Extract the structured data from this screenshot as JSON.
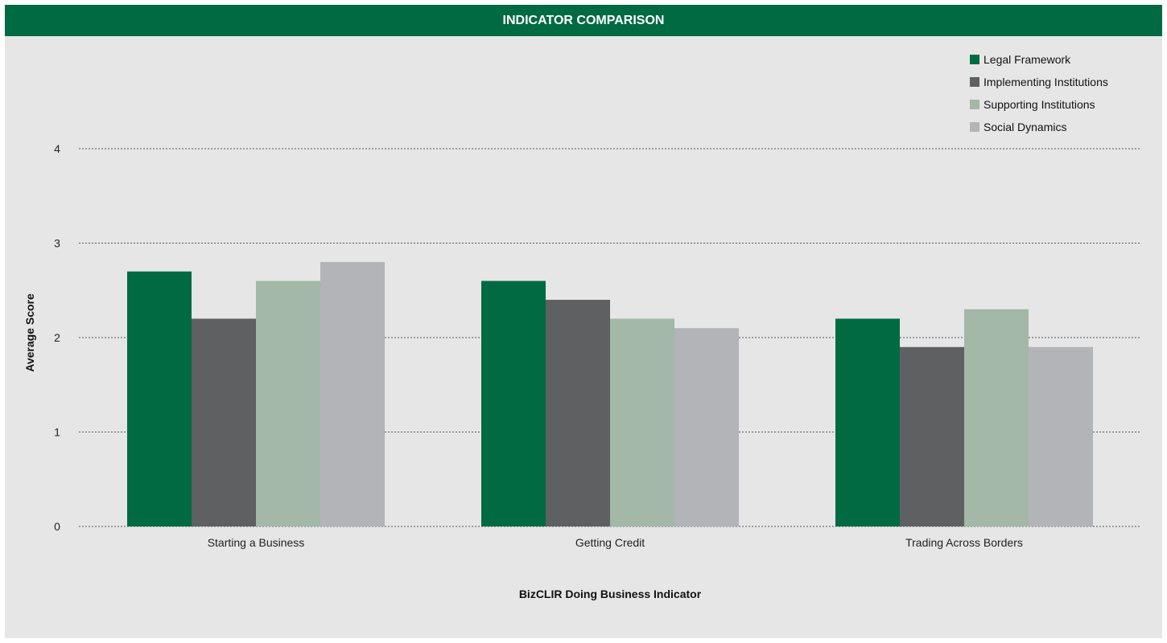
{
  "header": {
    "title": "INDICATOR COMPARISON"
  },
  "chart_data": {
    "type": "bar",
    "title": "INDICATOR COMPARISON",
    "xlabel": "BizCLIR Doing Business Indicator",
    "ylabel": "Average Score",
    "ylim": [
      0,
      4
    ],
    "yticks": [
      "0",
      "1",
      "2",
      "3",
      "4"
    ],
    "grid": true,
    "legend_position": "top-right",
    "categories": [
      "Starting a Business",
      "Getting Credit",
      "Trading Across Borders"
    ],
    "series": [
      {
        "name": "Legal Framework",
        "color": "#006a43",
        "values": [
          2.7,
          2.6,
          2.2
        ]
      },
      {
        "name": "Implementing Institutions",
        "color": "#5f6062",
        "values": [
          2.2,
          2.4,
          1.9
        ]
      },
      {
        "name": "Supporting Institutions",
        "color": "#a3b8a7",
        "values": [
          2.6,
          2.2,
          2.3
        ]
      },
      {
        "name": "Social Dynamics",
        "color": "#b3b4b7",
        "values": [
          2.8,
          2.1,
          1.9
        ]
      }
    ]
  }
}
